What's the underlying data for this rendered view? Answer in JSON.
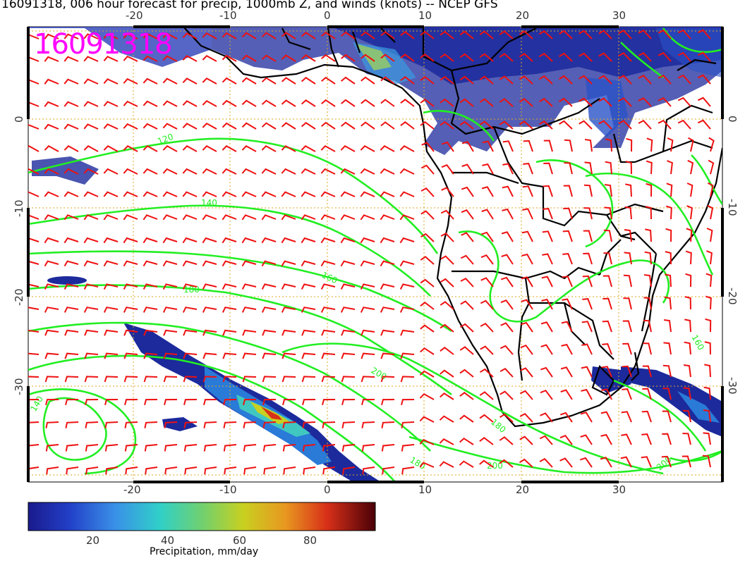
{
  "title": "16091318, 006 hour forecast for precip, 1000mb Z, and winds (knots) -- NCEP GFS",
  "stamp": "16091318",
  "lon_ticks": [
    "-20",
    "-10",
    "0",
    "10",
    "20",
    "30"
  ],
  "lat_ticks": [
    "0",
    "-10",
    "-20",
    "-30"
  ],
  "contour_labels": [
    "120",
    "140",
    "160",
    "180",
    "200"
  ],
  "colorbar": {
    "title": "Precipitation, mm/day",
    "ticks": [
      "20",
      "40",
      "60",
      "80"
    ],
    "colors": [
      "#1a1aa0",
      "#2250d8",
      "#3aa0e8",
      "#30d0c0",
      "#70d070",
      "#c8d020",
      "#e8a020",
      "#d83018",
      "#a00010",
      "#5a0008"
    ]
  },
  "colors": {
    "precip_dark": "#1c2a9c",
    "precip_light": "#3a7ad8",
    "contour": "#22ee22",
    "barb": "#ee1111",
    "coast": "#000000",
    "grid": "#ddaa22",
    "stamp": "#ff00ff"
  }
}
